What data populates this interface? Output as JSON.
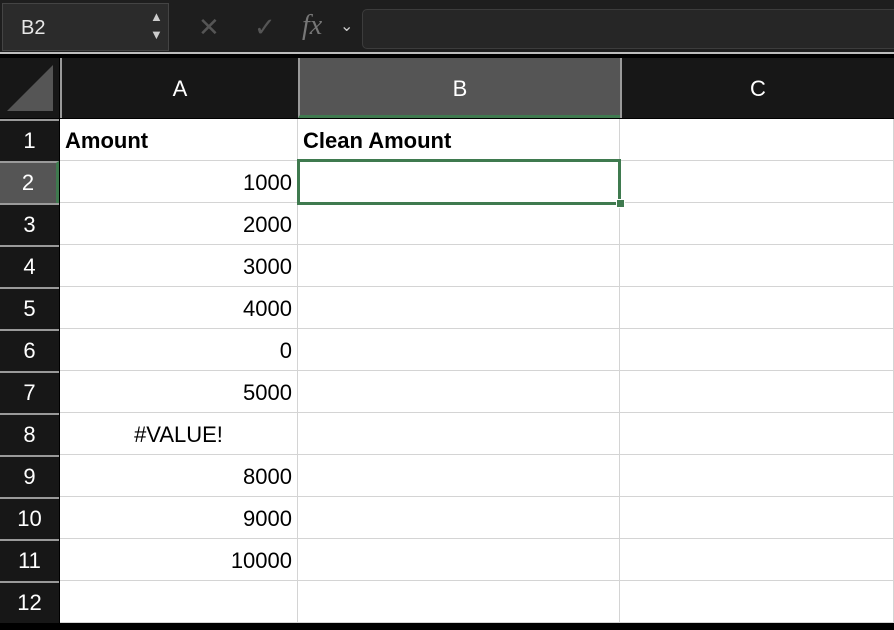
{
  "toolbar": {
    "name_box": "B2",
    "cancel_icon": "x-icon",
    "enter_icon": "check-icon",
    "fx_label": "fx",
    "formula": ""
  },
  "columns": [
    "A",
    "B",
    "C"
  ],
  "selected_column": "B",
  "selected_row": "2",
  "selected_cell": "B2",
  "accent_color": "#3f7a4f",
  "rows": [
    {
      "n": "1",
      "A": "Amount",
      "B": "Clean Amount",
      "C": ""
    },
    {
      "n": "2",
      "A": "1000",
      "B": "",
      "C": ""
    },
    {
      "n": "3",
      "A": "2000",
      "B": "",
      "C": ""
    },
    {
      "n": "4",
      "A": "3000",
      "B": "",
      "C": ""
    },
    {
      "n": "5",
      "A": "4000",
      "B": "",
      "C": ""
    },
    {
      "n": "6",
      "A": "0",
      "B": "",
      "C": ""
    },
    {
      "n": "7",
      "A": "5000",
      "B": "",
      "C": ""
    },
    {
      "n": "8",
      "A": "#VALUE!",
      "B": "",
      "C": ""
    },
    {
      "n": "9",
      "A": "8000",
      "B": "",
      "C": ""
    },
    {
      "n": "10",
      "A": "9000",
      "B": "",
      "C": ""
    },
    {
      "n": "11",
      "A": "10000",
      "B": "",
      "C": ""
    },
    {
      "n": "12",
      "A": "",
      "B": "",
      "C": ""
    }
  ]
}
